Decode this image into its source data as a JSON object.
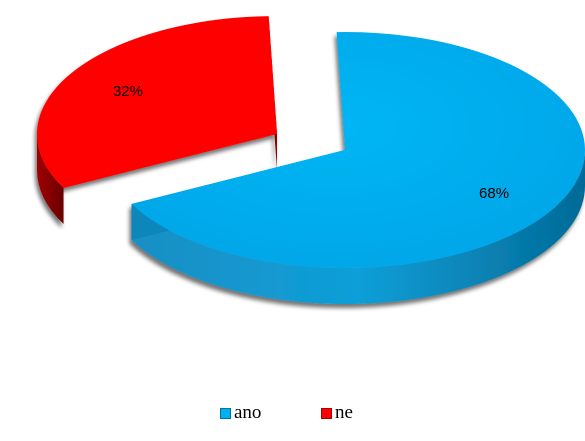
{
  "chart_data": {
    "type": "pie",
    "style": "3d-exploded",
    "slices": [
      {
        "label": "ano",
        "value": 68,
        "value_label": "68%",
        "color": "#00b0f0",
        "dark_color": "#0477a6"
      },
      {
        "label": "ne",
        "value": 32,
        "value_label": "32%",
        "color": "#ff0000",
        "dark_color": "#8b0000"
      }
    ],
    "legend_position": "bottom"
  }
}
